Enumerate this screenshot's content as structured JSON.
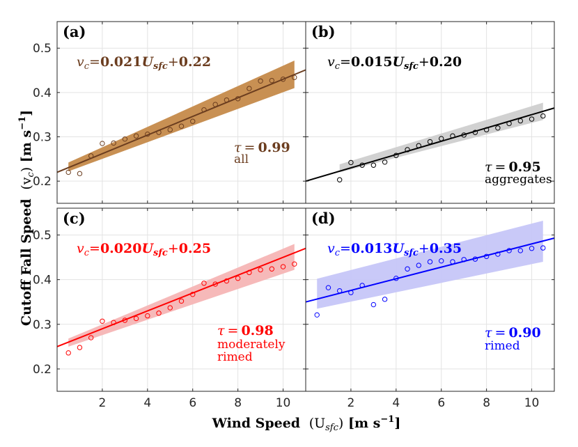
{
  "chart_data": {
    "type": "scatter",
    "xlabel": "Wind Speed (U_sfc) [m s^-1]",
    "xlabel_parts": {
      "bold": "Wind Speed",
      "math": "(U",
      "sub": "sfc",
      "close": ")",
      "units": "[m s",
      "exp": "−1",
      "units_close": "]"
    },
    "ylabel": "Cutoff Fall Speed (v_c) [m s^-1]",
    "ylabel_parts": {
      "bold": "Cutoff Fall Speed",
      "math": "(v",
      "sub": "c",
      "close": ")",
      "units": "[m s",
      "exp": "−1",
      "units_close": "]"
    },
    "xlim": [
      0,
      11
    ],
    "ylim": [
      0.15,
      0.56
    ],
    "x_ticks": [
      2,
      4,
      6,
      8,
      10
    ],
    "x_tick_labels": [
      "2",
      "4",
      "6",
      "8",
      "10"
    ],
    "y_ticks": [
      0.2,
      0.3,
      0.4,
      0.5
    ],
    "y_tick_labels": [
      "0.2",
      "0.3",
      "0.4",
      "0.5"
    ],
    "grid": true,
    "panels": [
      {
        "letter": "(a)",
        "color": "#6b3d1f",
        "band_color": "#c58a4a",
        "slope": 0.021,
        "intercept": 0.22,
        "eq": {
          "v": "v",
          "sub": "c",
          "eqs": "=",
          "a": "0.021",
          "u": "U",
          "usub": "sfc",
          "plus": "+",
          "b": "0.22"
        },
        "tau_sym": "τ",
        "tau_eq": "=",
        "tau_val": "0.99",
        "label_lines": [
          "all"
        ],
        "band_x": [
          0.5,
          10.5
        ],
        "band_lo": [
          0.222,
          0.41
        ],
        "band_hi": [
          0.242,
          0.472
        ],
        "x": [
          0.5,
          1.0,
          1.5,
          2.0,
          2.5,
          3.0,
          3.5,
          4.0,
          4.5,
          5.0,
          5.5,
          6.0,
          6.5,
          7.0,
          7.5,
          8.0,
          8.5,
          9.0,
          9.5,
          10.0,
          10.5
        ],
        "y": [
          0.22,
          0.217,
          0.257,
          0.285,
          0.286,
          0.295,
          0.302,
          0.306,
          0.31,
          0.316,
          0.324,
          0.335,
          0.361,
          0.373,
          0.383,
          0.386,
          0.409,
          0.426,
          0.427,
          0.43,
          0.434
        ]
      },
      {
        "letter": "(b)",
        "color": "#000000",
        "band_color": "#cfcfcf",
        "slope": 0.015,
        "intercept": 0.2,
        "eq": {
          "v": "v",
          "sub": "c",
          "eqs": "=",
          "a": "0.015",
          "u": "U",
          "usub": "sfc",
          "plus": "+",
          "b": "0.20"
        },
        "tau_sym": "τ",
        "tau_eq": "=",
        "tau_val": "0.95",
        "label_lines": [
          "aggregates"
        ],
        "band_x": [
          1.5,
          10.5
        ],
        "band_lo": [
          0.22,
          0.338
        ],
        "band_hi": [
          0.238,
          0.377
        ],
        "x": [
          1.5,
          2.0,
          2.5,
          3.0,
          3.5,
          4.0,
          4.5,
          5.0,
          5.5,
          6.0,
          6.5,
          7.0,
          7.5,
          8.0,
          8.5,
          9.0,
          9.5,
          10.0,
          10.5
        ],
        "y": [
          0.203,
          0.242,
          0.236,
          0.236,
          0.243,
          0.258,
          0.271,
          0.28,
          0.289,
          0.296,
          0.302,
          0.304,
          0.31,
          0.316,
          0.32,
          0.33,
          0.336,
          0.34,
          0.347
        ]
      },
      {
        "letter": "(c)",
        "color": "#ff0000",
        "band_color": "#f6b5b5",
        "slope": 0.02,
        "intercept": 0.25,
        "eq": {
          "v": "v",
          "sub": "c",
          "eqs": "=",
          "a": "0.020",
          "u": "U",
          "usub": "sfc",
          "plus": "+",
          "b": "0.25"
        },
        "tau_sym": "τ",
        "tau_eq": "=",
        "tau_val": "0.98",
        "label_lines": [
          "moderately",
          "rimed"
        ],
        "band_x": [
          0.5,
          10.5
        ],
        "band_lo": [
          0.25,
          0.422
        ],
        "band_hi": [
          0.268,
          0.48
        ],
        "x": [
          0.5,
          1.0,
          1.5,
          2.0,
          2.5,
          3.0,
          3.5,
          4.0,
          4.5,
          5.0,
          5.5,
          6.0,
          6.5,
          7.0,
          7.5,
          8.0,
          8.5,
          9.0,
          9.5,
          10.0,
          10.5
        ],
        "y": [
          0.236,
          0.248,
          0.27,
          0.307,
          0.304,
          0.309,
          0.313,
          0.319,
          0.325,
          0.337,
          0.352,
          0.367,
          0.392,
          0.39,
          0.397,
          0.403,
          0.416,
          0.422,
          0.424,
          0.429,
          0.435
        ]
      },
      {
        "letter": "(d)",
        "color": "#0000ff",
        "band_color": "#c6c6f8",
        "slope": 0.013,
        "intercept": 0.35,
        "eq": {
          "v": "v",
          "sub": "c",
          "eqs": "=",
          "a": "0.013",
          "u": "U",
          "usub": "sfc",
          "plus": "+",
          "b": "0.35"
        },
        "tau_sym": "τ",
        "tau_eq": "=",
        "tau_val": "0.90",
        "label_lines": [
          "rimed"
        ],
        "band_x": [
          0.5,
          10.5
        ],
        "band_lo": [
          0.335,
          0.44
        ],
        "band_hi": [
          0.402,
          0.532
        ],
        "x": [
          0.5,
          1.0,
          1.5,
          2.0,
          2.5,
          3.0,
          3.5,
          4.0,
          4.5,
          5.0,
          5.5,
          6.0,
          6.5,
          7.0,
          7.5,
          8.0,
          8.5,
          9.0,
          9.5,
          10.0,
          10.5
        ],
        "y": [
          0.321,
          0.382,
          0.375,
          0.371,
          0.387,
          0.344,
          0.356,
          0.403,
          0.424,
          0.432,
          0.44,
          0.442,
          0.44,
          0.445,
          0.446,
          0.452,
          0.457,
          0.465,
          0.465,
          0.47,
          0.471
        ]
      }
    ]
  }
}
